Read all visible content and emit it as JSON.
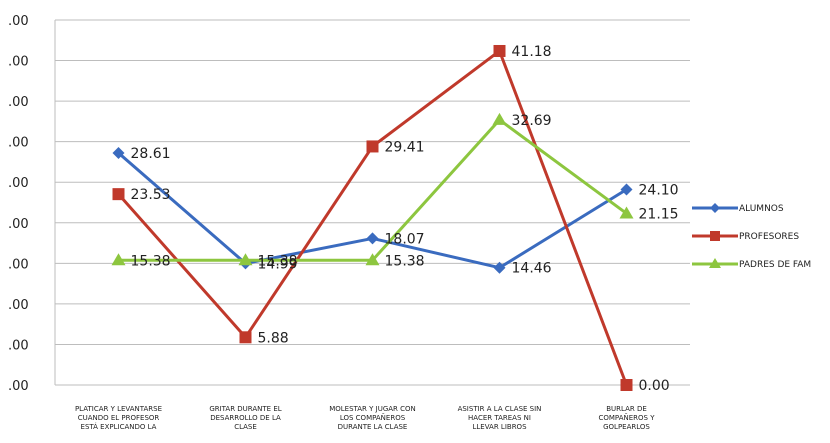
{
  "chart_data": {
    "type": "line",
    "categories": [
      [
        "PLATICAR Y LEVANTARSE",
        "CUANDO EL PROFESOR",
        "ESTÁ EXPLICANDO LA"
      ],
      [
        "GRITAR DURANTE EL",
        "DESARROLLO DE LA",
        "CLASE"
      ],
      [
        "MOLESTAR Y JUGAR CON",
        "LOS COMPAÑEROS",
        "DURANTE LA CLASE"
      ],
      [
        "ASISTIR A LA CLASE SIN",
        "HACER TAREAS NI",
        "LLEVAR LIBROS"
      ],
      [
        "BURLAR DE",
        "COMPAÑEROS Y",
        "GOLPEARLOS"
      ]
    ],
    "yticks": [
      ".00",
      ".00",
      ".00",
      ".00",
      ".00",
      ".00",
      ".00",
      ".00",
      ".00",
      ".00"
    ],
    "ylim": [
      0,
      45
    ],
    "grid": true,
    "legend_position": "right",
    "series": [
      {
        "name": "ALUMNOS",
        "color": "#3a6bbf",
        "marker": "diamond",
        "values": [
          28.61,
          14.99,
          18.07,
          14.46,
          24.1
        ],
        "labels": [
          "28.61",
          "14.99",
          "18.07",
          "14.46",
          "24.10"
        ]
      },
      {
        "name": "PROFESORES",
        "color": "#c0392b",
        "marker": "square",
        "values": [
          23.53,
          5.88,
          29.41,
          41.18,
          0.0
        ],
        "labels": [
          "23.53",
          "5.88",
          "29.41",
          "41.18",
          "0.00"
        ]
      },
      {
        "name": "PADRES DE FAM",
        "color": "#8dc63f",
        "marker": "triangle",
        "values": [
          15.38,
          15.38,
          15.38,
          32.69,
          21.15
        ],
        "labels": [
          "15.38",
          "15.38",
          "15.38",
          "32.69",
          "21.15"
        ]
      }
    ]
  }
}
